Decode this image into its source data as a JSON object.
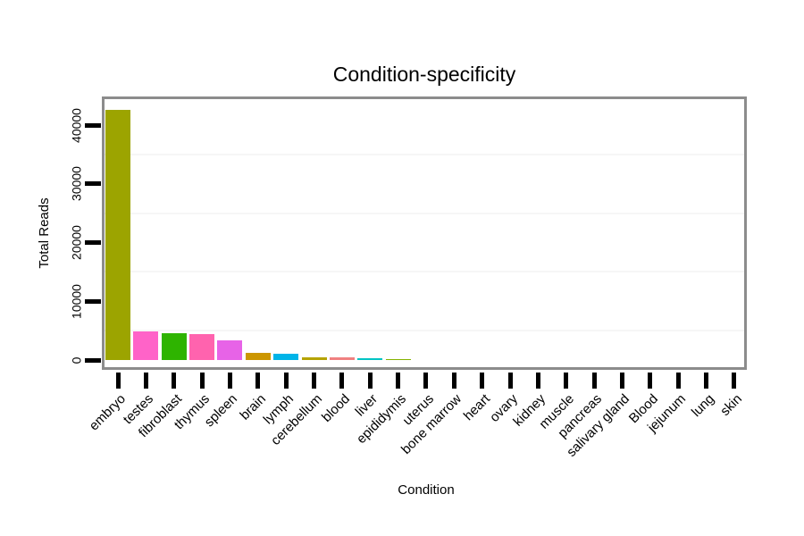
{
  "title": "Condition-specificity",
  "chart_data": {
    "type": "bar",
    "title": "Condition-specificity",
    "xlabel": "Condition",
    "ylabel": "Total Reads",
    "categories": [
      "embryo",
      "testes",
      "fibroblast",
      "thymus",
      "spleen",
      "brain",
      "lymph",
      "cerebellum",
      "blood",
      "liver",
      "epididymis",
      "uterus",
      "bone marrow",
      "heart",
      "ovary",
      "kidney",
      "muscle",
      "pancreas",
      "salivary gland",
      "Blood",
      "jejunum",
      "lung",
      "skin"
    ],
    "values": [
      42700,
      4800,
      4500,
      4450,
      3350,
      1200,
      1000,
      450,
      430,
      250,
      220,
      0,
      0,
      0,
      0,
      0,
      0,
      0,
      0,
      0,
      0,
      0,
      0
    ],
    "bar_colors": [
      "#9CA400",
      "#FF63C8",
      "#2EB400",
      "#FF63AE",
      "#E763E7",
      "#CC9600",
      "#00B4E8",
      "#B5A300",
      "#F08080",
      "#00C4C4",
      "#84B200",
      null,
      null,
      null,
      null,
      null,
      null,
      null,
      null,
      null,
      null,
      null,
      null
    ],
    "yticks": [
      0,
      10000,
      20000,
      30000,
      40000
    ],
    "ytick_labels": [
      "0",
      "10000",
      "20000",
      "30000",
      "40000"
    ],
    "ylim": [
      0,
      45000
    ],
    "minor_gridlines": [
      5000,
      15000,
      25000,
      35000
    ],
    "legend": "none",
    "grid": "faint horizontal minor gridlines only"
  },
  "colors": {
    "frame": "#8C8C8C",
    "tick": "#000000",
    "gridline": "#F6F6F6",
    "background": "#FFFFFF",
    "text": "#000000"
  }
}
